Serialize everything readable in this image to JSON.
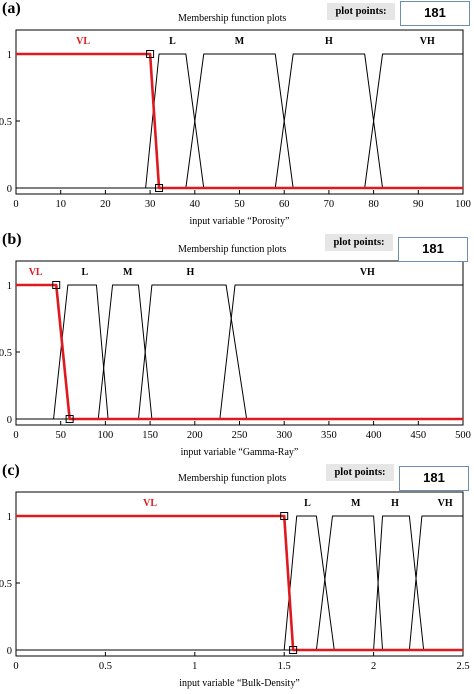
{
  "chart_data": [
    {
      "panel_label": "(a)",
      "type": "line",
      "title": "Membership function plots",
      "plot_points_label": "plot points:",
      "plot_points_value": "181",
      "xlabel": "input variable “Porosity”",
      "xlim": [
        0,
        100
      ],
      "ylim": [
        0,
        1
      ],
      "xticks": [
        "0",
        "10",
        "20",
        "30",
        "40",
        "50",
        "60",
        "70",
        "80",
        "90",
        "100"
      ],
      "xtick_values": [
        0,
        10,
        20,
        30,
        40,
        50,
        60,
        70,
        80,
        90,
        100
      ],
      "yticks": [
        "0",
        "0.5",
        "1"
      ],
      "ytick_values": [
        0,
        0.5,
        1
      ],
      "selected": "VL",
      "series": [
        {
          "name": "VL",
          "points": [
            [
              0,
              1
            ],
            [
              30,
              1
            ],
            [
              32,
              0
            ],
            [
              100,
              0
            ]
          ],
          "label_x": 15
        },
        {
          "name": "L",
          "points": [
            [
              0,
              0
            ],
            [
              29,
              0
            ],
            [
              32,
              1
            ],
            [
              38,
              1
            ],
            [
              42,
              0
            ],
            [
              100,
              0
            ]
          ],
          "label_x": 35
        },
        {
          "name": "M",
          "points": [
            [
              0,
              0
            ],
            [
              38,
              0
            ],
            [
              42,
              1
            ],
            [
              58,
              1
            ],
            [
              62,
              0
            ],
            [
              100,
              0
            ]
          ],
          "label_x": 50
        },
        {
          "name": "H",
          "points": [
            [
              0,
              0
            ],
            [
              58,
              0
            ],
            [
              62,
              1
            ],
            [
              78,
              1
            ],
            [
              82,
              0
            ],
            [
              100,
              0
            ]
          ],
          "label_x": 70
        },
        {
          "name": "VH",
          "points": [
            [
              0,
              0
            ],
            [
              78,
              0
            ],
            [
              82,
              1
            ],
            [
              100,
              1
            ]
          ],
          "label_x": 92
        }
      ],
      "markers": [
        [
          30,
          1
        ],
        [
          32,
          0
        ]
      ]
    },
    {
      "panel_label": "(b)",
      "type": "line",
      "title": "Membership function plots",
      "plot_points_label": "plot points:",
      "plot_points_value": "181",
      "xlabel": "input variable “Gamma-Ray”",
      "xlim": [
        0,
        500
      ],
      "ylim": [
        0,
        1
      ],
      "xticks": [
        "0",
        "50",
        "100",
        "150",
        "200",
        "250",
        "300",
        "350",
        "400",
        "450",
        "500"
      ],
      "xtick_values": [
        0,
        50,
        100,
        150,
        200,
        250,
        300,
        350,
        400,
        450,
        500
      ],
      "yticks": [
        "0",
        "0.5",
        "1"
      ],
      "ytick_values": [
        0,
        0.5,
        1
      ],
      "selected": "VL",
      "series": [
        {
          "name": "VL",
          "points": [
            [
              0,
              1
            ],
            [
              45,
              1
            ],
            [
              60,
              0
            ],
            [
              500,
              0
            ]
          ],
          "label_x": 22
        },
        {
          "name": "L",
          "points": [
            [
              0,
              0
            ],
            [
              42,
              0
            ],
            [
              58,
              1
            ],
            [
              90,
              1
            ],
            [
              103,
              0
            ],
            [
              500,
              0
            ]
          ],
          "label_x": 77
        },
        {
          "name": "M",
          "points": [
            [
              0,
              0
            ],
            [
              92,
              0
            ],
            [
              108,
              1
            ],
            [
              137,
              1
            ],
            [
              152,
              0
            ],
            [
              500,
              0
            ]
          ],
          "label_x": 125
        },
        {
          "name": "H",
          "points": [
            [
              0,
              0
            ],
            [
              137,
              0
            ],
            [
              152,
              1
            ],
            [
              235,
              1
            ],
            [
              258,
              0
            ],
            [
              500,
              0
            ]
          ],
          "label_x": 195
        },
        {
          "name": "VH",
          "points": [
            [
              0,
              0
            ],
            [
              228,
              0
            ],
            [
              245,
              1
            ],
            [
              500,
              1
            ]
          ],
          "label_x": 393
        }
      ],
      "markers": [
        [
          45,
          1
        ],
        [
          60,
          0
        ]
      ]
    },
    {
      "panel_label": "(c)",
      "type": "line",
      "title": "Membership function plots",
      "plot_points_label": "plot points:",
      "plot_points_value": "181",
      "xlabel": "input variable “Bulk-Density”",
      "xlim": [
        0,
        2.5
      ],
      "ylim": [
        0,
        1
      ],
      "xticks": [
        "0",
        "0.5",
        "1",
        "1.5",
        "2",
        "2.5"
      ],
      "xtick_values": [
        0,
        0.5,
        1,
        1.5,
        2,
        2.5
      ],
      "yticks": [
        "0",
        "0.5",
        "1"
      ],
      "ytick_values": [
        0,
        0.5,
        1
      ],
      "selected": "VL",
      "series": [
        {
          "name": "VL",
          "points": [
            [
              0,
              1
            ],
            [
              1.5,
              1
            ],
            [
              1.55,
              0
            ],
            [
              2.5,
              0
            ]
          ],
          "label_x": 0.75
        },
        {
          "name": "L",
          "points": [
            [
              0,
              0
            ],
            [
              1.5,
              0
            ],
            [
              1.57,
              1
            ],
            [
              1.68,
              1
            ],
            [
              1.78,
              0
            ],
            [
              2.5,
              0
            ]
          ],
          "label_x": 1.63
        },
        {
          "name": "M",
          "points": [
            [
              0,
              0
            ],
            [
              1.68,
              0
            ],
            [
              1.77,
              1
            ],
            [
              2.0,
              1
            ],
            [
              2.05,
              0
            ],
            [
              2.5,
              0
            ]
          ],
          "label_x": 1.9
        },
        {
          "name": "H",
          "points": [
            [
              0,
              0
            ],
            [
              2.0,
              0
            ],
            [
              2.05,
              1
            ],
            [
              2.2,
              1
            ],
            [
              2.28,
              0
            ],
            [
              2.5,
              0
            ]
          ],
          "label_x": 2.12
        },
        {
          "name": "VH",
          "points": [
            [
              0,
              0
            ],
            [
              2.2,
              0
            ],
            [
              2.27,
              1
            ],
            [
              2.5,
              1
            ]
          ],
          "label_x": 2.4
        }
      ],
      "markers": [
        [
          1.5,
          1
        ],
        [
          1.55,
          0
        ]
      ]
    }
  ]
}
